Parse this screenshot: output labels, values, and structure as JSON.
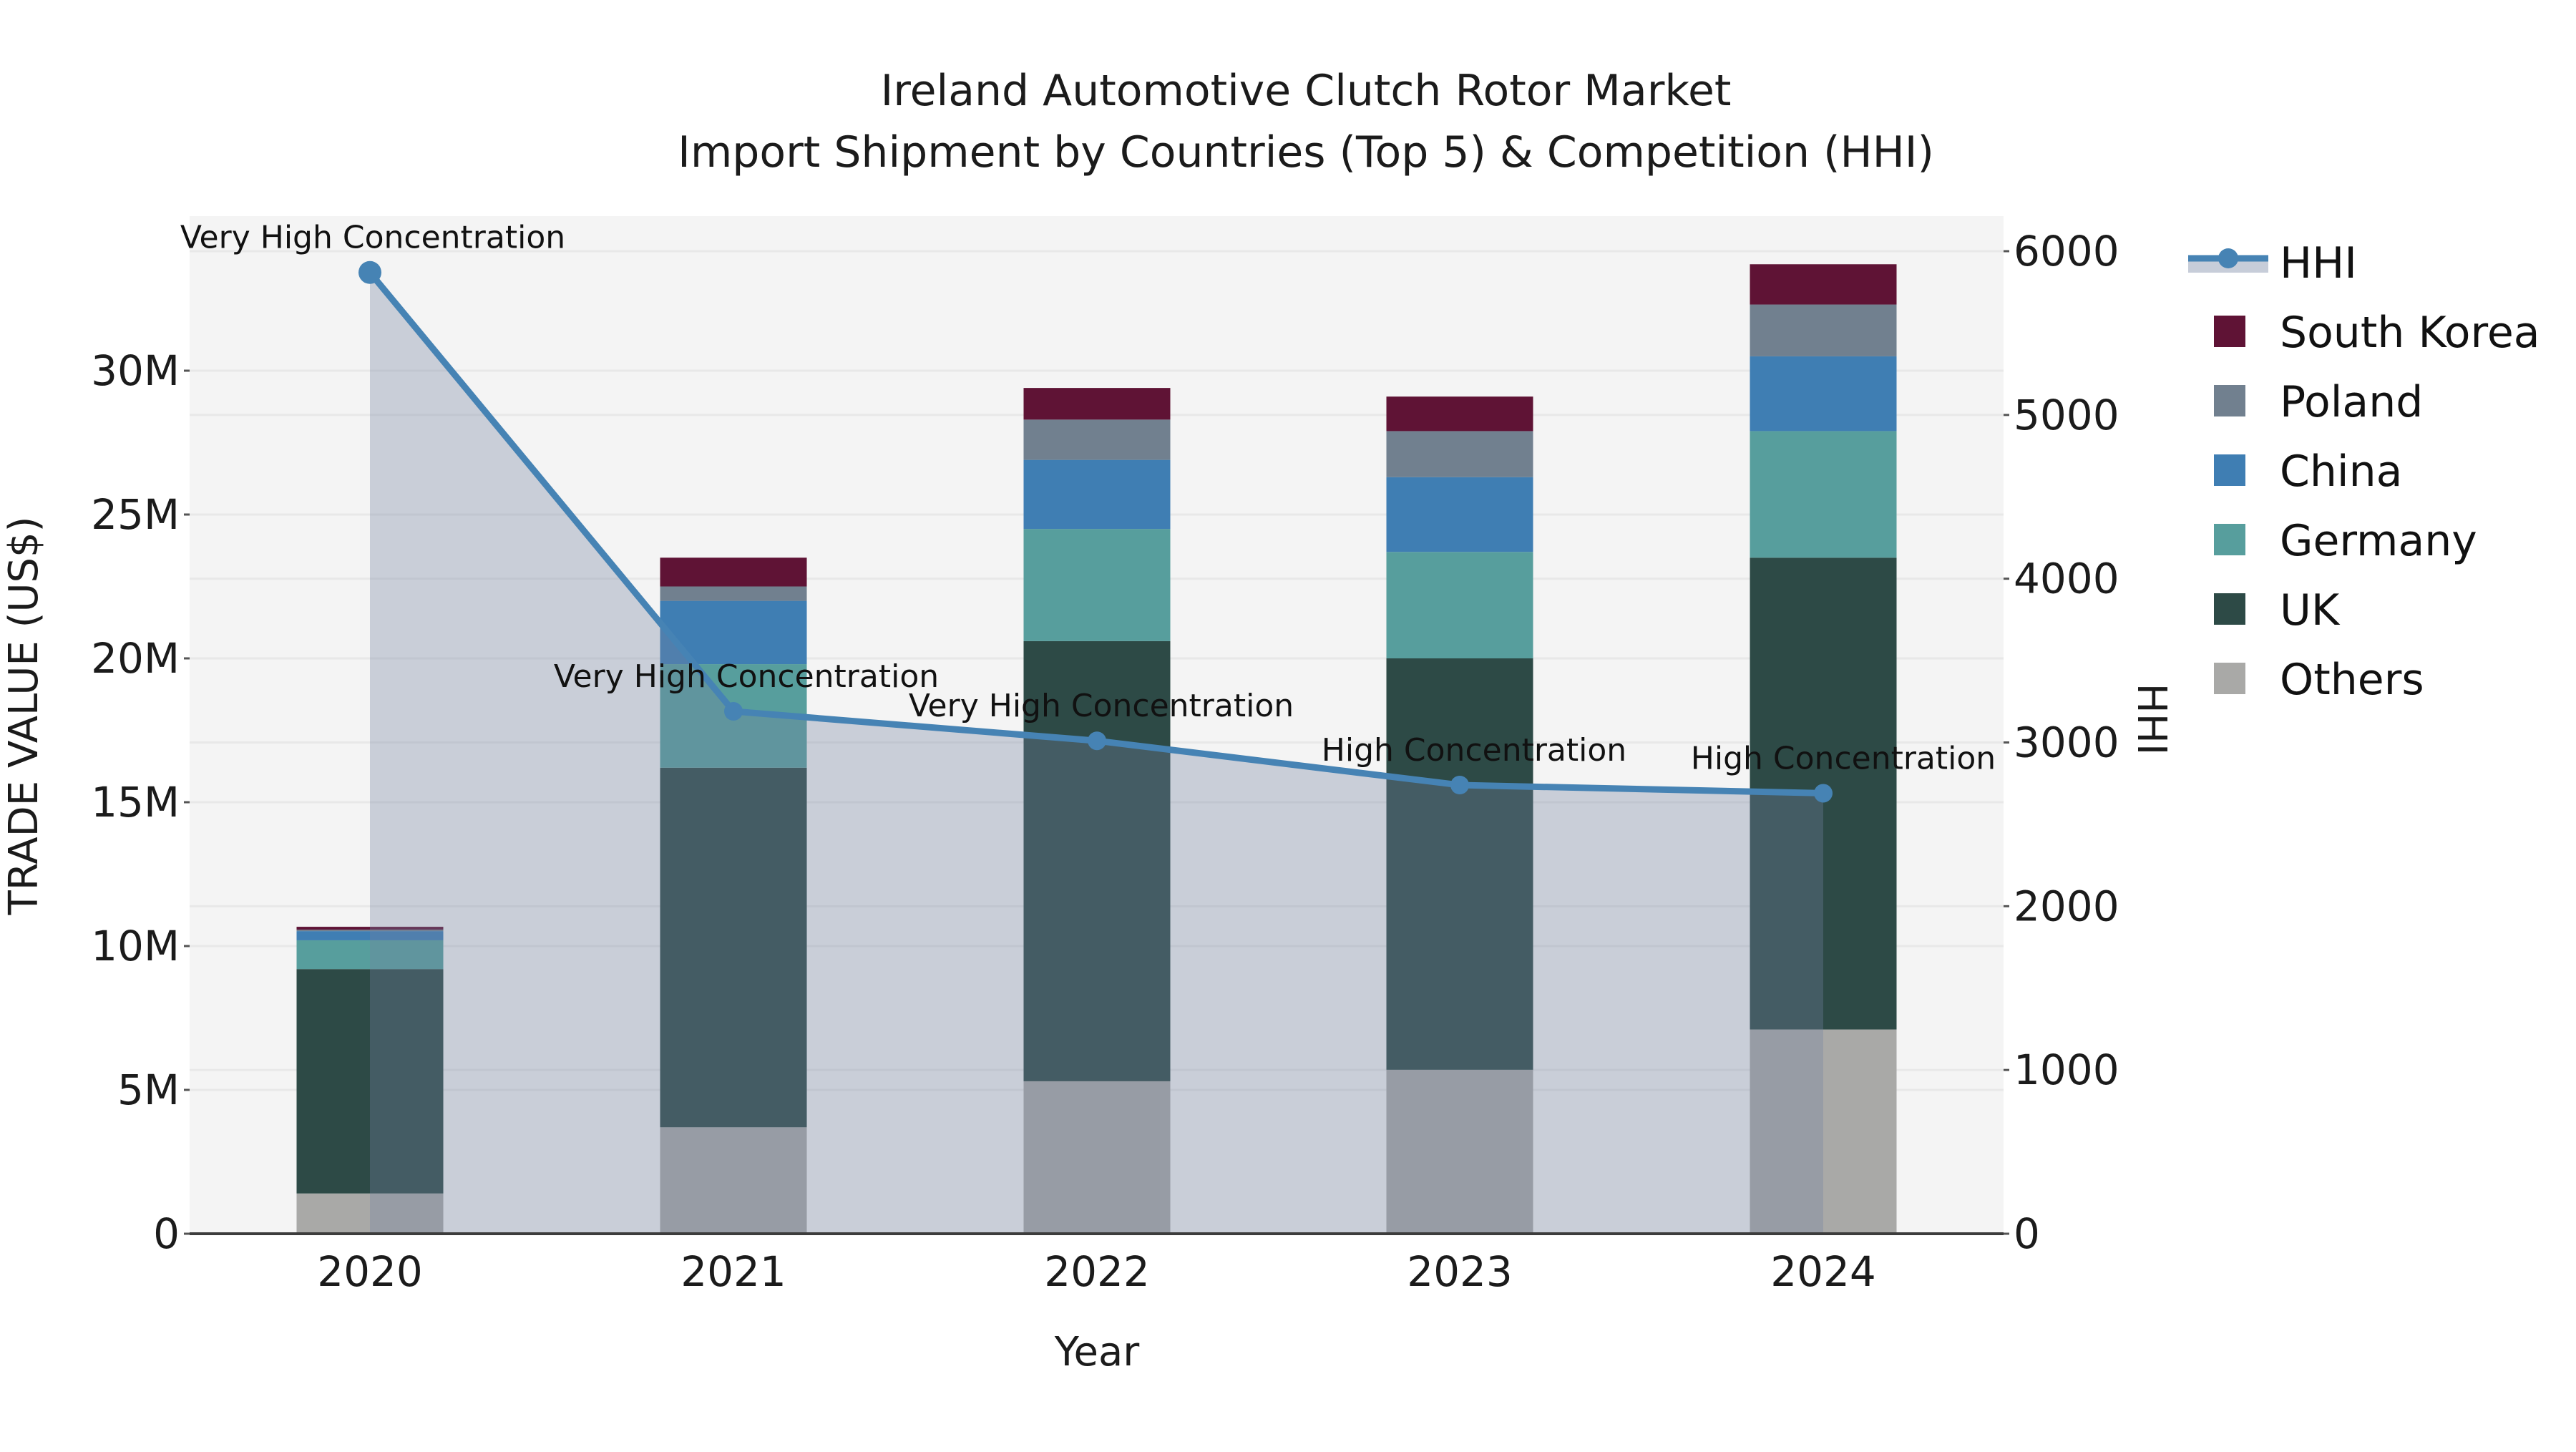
{
  "title": {
    "line1": "Ireland Automotive Clutch Rotor Market",
    "line2": "Import Shipment by Countries (Top 5) & Competition (HHI)"
  },
  "axes": {
    "x": {
      "label": "Year",
      "ticks": [
        "2020",
        "2021",
        "2022",
        "2023",
        "2024"
      ]
    },
    "y_left": {
      "label": "TRADE VALUE (US$)",
      "ticks": [
        {
          "value": 0,
          "label": "0"
        },
        {
          "value": 5,
          "label": "5M"
        },
        {
          "value": 10,
          "label": "10M"
        },
        {
          "value": 15,
          "label": "15M"
        },
        {
          "value": 20,
          "label": "20M"
        },
        {
          "value": 25,
          "label": "25M"
        },
        {
          "value": 30,
          "label": "30M"
        }
      ]
    },
    "y_right": {
      "label": "HHI",
      "ticks": [
        {
          "value": 0,
          "label": "0"
        },
        {
          "value": 1000,
          "label": "1000"
        },
        {
          "value": 2000,
          "label": "2000"
        },
        {
          "value": 3000,
          "label": "3000"
        },
        {
          "value": 4000,
          "label": "4000"
        },
        {
          "value": 5000,
          "label": "5000"
        },
        {
          "value": 6000,
          "label": "6000"
        }
      ]
    }
  },
  "legend": {
    "items": [
      {
        "label": "HHI",
        "type": "line",
        "color": "#4683b4"
      },
      {
        "label": "South Korea",
        "type": "swatch",
        "color": "#5f1335"
      },
      {
        "label": "Poland",
        "type": "swatch",
        "color": "#71808f"
      },
      {
        "label": "China",
        "type": "swatch",
        "color": "#3f7eb3"
      },
      {
        "label": "Germany",
        "type": "swatch",
        "color": "#579e9d"
      },
      {
        "label": "UK",
        "type": "swatch",
        "color": "#2d4a46"
      },
      {
        "label": "Others",
        "type": "swatch",
        "color": "#a9a9a7"
      }
    ]
  },
  "colors": {
    "plot_bg": "#f4f4f4",
    "grid": "#e8e8e8",
    "axis_line": "#3c3c3c",
    "text": "#1b1b1b",
    "hhi_line": "#4683b4",
    "hhi_area": "rgba(115,130,160,0.33)",
    "legend_hhi_band": "#c7cdd9"
  },
  "chart_data": {
    "type": "stacked-bar+line",
    "categories": [
      "2020",
      "2021",
      "2022",
      "2023",
      "2024"
    ],
    "bar_value_unit": "Million US$ (left axis)",
    "series": [
      {
        "name": "Others",
        "color": "#a9a9a7",
        "values": [
          1.4,
          3.7,
          5.3,
          5.7,
          7.1
        ]
      },
      {
        "name": "UK",
        "color": "#2d4a46",
        "values": [
          7.8,
          12.5,
          15.3,
          14.3,
          16.4
        ]
      },
      {
        "name": "Germany",
        "color": "#579e9d",
        "values": [
          1.0,
          3.6,
          3.9,
          3.7,
          4.4
        ]
      },
      {
        "name": "China",
        "color": "#3f7eb3",
        "values": [
          0.32,
          2.2,
          2.4,
          2.6,
          2.6
        ]
      },
      {
        "name": "Poland",
        "color": "#71808f",
        "values": [
          0.05,
          0.5,
          1.4,
          1.6,
          1.8
        ]
      },
      {
        "name": "South Korea",
        "color": "#5f1335",
        "values": [
          0.1,
          1.0,
          1.1,
          1.2,
          1.4
        ]
      }
    ],
    "bar_totals": [
      10.67,
      23.5,
      29.4,
      29.1,
      33.7
    ],
    "line_series": {
      "name": "HHI",
      "axis": "right",
      "values": [
        5870,
        3190,
        3010,
        2740,
        2690
      ]
    },
    "annotations": [
      {
        "year": "2020",
        "text": "Very High Concentration"
      },
      {
        "year": "2021",
        "text": "Very High Concentration"
      },
      {
        "year": "2022",
        "text": "Very High Concentration"
      },
      {
        "year": "2023",
        "text": "High Concentration"
      },
      {
        "year": "2024",
        "text": "High Concentration"
      }
    ],
    "ylim_left": [
      0,
      35
    ],
    "ylim_right": [
      0,
      6000
    ],
    "grid": "on",
    "legend_position": "right"
  }
}
